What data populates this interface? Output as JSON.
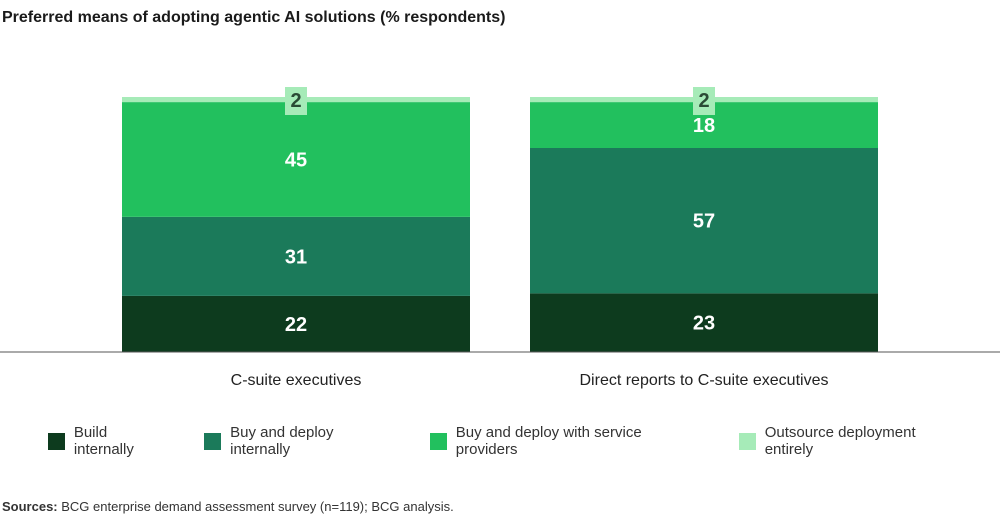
{
  "title": "Preferred means of adopting agentic AI solutions (% respondents)",
  "chart_data": {
    "type": "bar",
    "stacked": true,
    "categories": [
      "C-suite executives",
      "Direct reports to C-suite executives"
    ],
    "series": [
      {
        "name": "Build internally",
        "color": "#0d3b1e",
        "values": [
          22,
          23
        ]
      },
      {
        "name": "Buy and deploy internally",
        "color": "#1b7a5a",
        "values": [
          31,
          57
        ]
      },
      {
        "name": "Buy and deploy with service providers",
        "color": "#22c05e",
        "values": [
          45,
          18
        ]
      },
      {
        "name": "Outsource deployment entirely",
        "color": "#a6ebb8",
        "values": [
          2,
          2
        ]
      }
    ],
    "ylim": [
      0,
      100
    ],
    "legend_position": "bottom"
  },
  "source": {
    "label": "Sources:",
    "text": " BCG enterprise demand assessment survey (n=119); BCG analysis."
  }
}
